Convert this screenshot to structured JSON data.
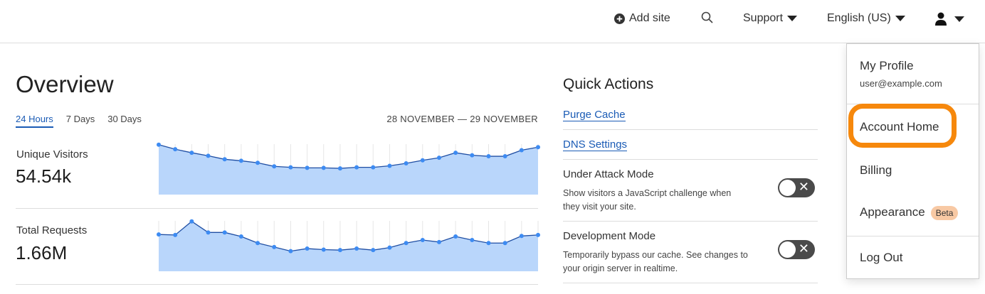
{
  "topbar": {
    "add_site": "Add site",
    "support": "Support",
    "language": "English (US)",
    "icons": [
      "plus-circle-icon",
      "search-icon",
      "user-icon"
    ]
  },
  "overview": {
    "title": "Overview",
    "tabs": [
      {
        "label": "24 Hours",
        "active": true
      },
      {
        "label": "7 Days"
      },
      {
        "label": "30 Days"
      }
    ],
    "date_range": "28 NOVEMBER — 29 NOVEMBER",
    "metrics": [
      {
        "label": "Unique Visitors",
        "value": "54.54k"
      },
      {
        "label": "Total Requests",
        "value": "1.66M"
      }
    ]
  },
  "chart_data": [
    {
      "type": "area",
      "series": [
        {
          "values": [
            99,
            90,
            83,
            77,
            70,
            67,
            63,
            56,
            54,
            53,
            53,
            52,
            54,
            54,
            57,
            62,
            68,
            73,
            83,
            78,
            76,
            76,
            88,
            94
          ]
        }
      ],
      "grid": "vertical",
      "fill_color": "#b9d6fb",
      "line_color": "#1f4ea3",
      "point_color": "#3d8bf2"
    },
    {
      "type": "area",
      "series": [
        {
          "values": [
            73,
            72,
            99,
            77,
            77,
            69,
            56,
            48,
            40,
            45,
            43,
            42,
            45,
            42,
            47,
            56,
            62,
            58,
            69,
            62,
            56,
            56,
            70,
            72
          ]
        }
      ],
      "grid": "vertical",
      "fill_color": "#b9d6fb",
      "line_color": "#1f4ea3",
      "point_color": "#3d8bf2"
    }
  ],
  "quick_actions": {
    "title": "Quick Actions",
    "links": [
      "Purge Cache",
      "DNS Settings"
    ],
    "toggles": [
      {
        "title": "Under Attack Mode",
        "desc": "Show visitors a JavaScript challenge when they visit your site.",
        "on": false
      },
      {
        "title": "Development Mode",
        "desc": "Temporarily bypass our cache. See changes to your origin server in realtime.",
        "on": false
      }
    ]
  },
  "user_menu": {
    "profile": "My Profile",
    "email": "user@example.com",
    "account_home": "Account Home",
    "billing": "Billing",
    "appearance": "Appearance",
    "badge": "Beta",
    "logout": "Log Out",
    "highlight_color": "#f6880c"
  }
}
